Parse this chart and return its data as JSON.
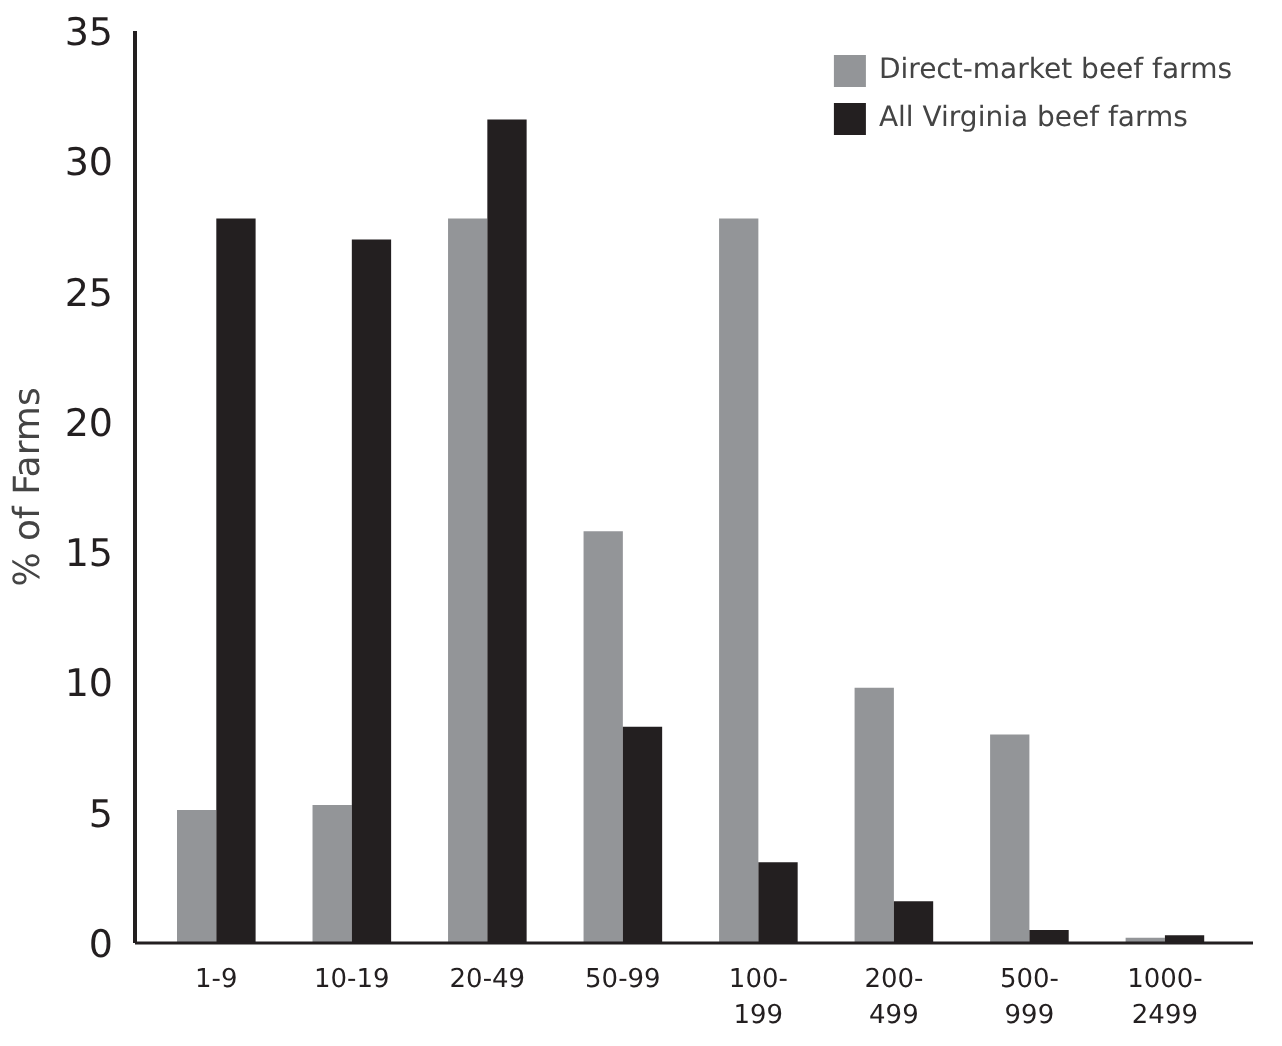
{
  "chart_data": {
    "type": "bar",
    "ylabel": "% of Farms",
    "categories": [
      "1-9",
      "10-19",
      "20-49",
      "50-99",
      "100-\n199",
      "200-\n499",
      "500-\n999",
      "1000-\n2499"
    ],
    "series": [
      {
        "name": "Direct-market beef farms",
        "color": "#939598",
        "values": [
          5.1,
          5.3,
          27.8,
          15.8,
          27.8,
          9.8,
          8.0,
          0.2
        ]
      },
      {
        "name": "All Virginia beef farms",
        "color": "#231f20",
        "values": [
          27.8,
          27.0,
          31.6,
          8.3,
          3.1,
          1.6,
          0.5,
          0.3
        ]
      }
    ],
    "ylim": [
      0,
      35
    ],
    "yticks": [
      0,
      5,
      10,
      15,
      20,
      25,
      30,
      35
    ],
    "grid": false,
    "legend": "top right"
  }
}
